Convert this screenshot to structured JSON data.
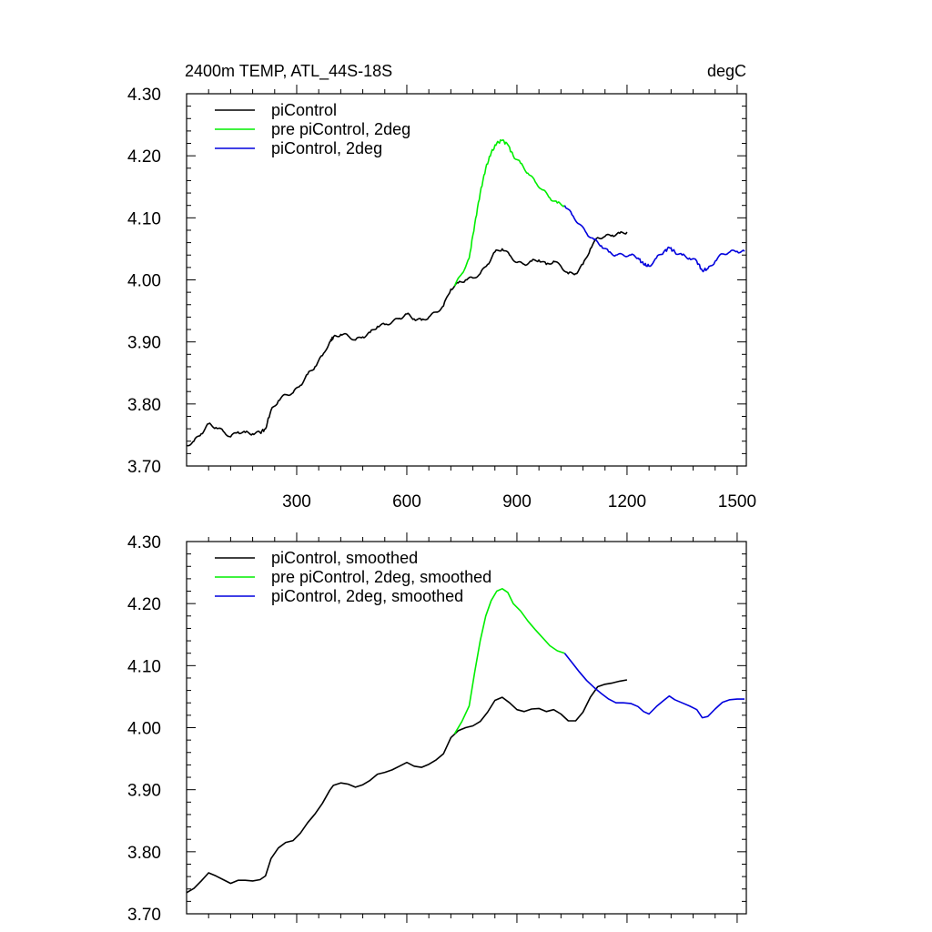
{
  "figure": {
    "title_left": "2400m TEMP, ATL_44S-18S",
    "title_right": "degC"
  },
  "chart_data": [
    {
      "type": "line",
      "title": "2400m TEMP, ATL_44S-18S",
      "units": "degC",
      "xlim": [
        0,
        1525
      ],
      "ylim": [
        3.7,
        4.3
      ],
      "x_ticks": [
        300,
        600,
        900,
        1200,
        1500
      ],
      "x_tick_labels": [
        "300",
        "600",
        "900",
        "1200",
        "1500"
      ],
      "y_ticks": [
        3.7,
        3.8,
        3.9,
        4.0,
        4.1,
        4.2,
        4.3
      ],
      "y_tick_labels": [
        "3.70",
        "3.80",
        "3.90",
        "4.00",
        "4.10",
        "4.20",
        "4.30"
      ],
      "legend_position": "top-left",
      "series": [
        {
          "name": "piControl",
          "color": "#000000",
          "x": [
            0,
            20,
            40,
            60,
            80,
            100,
            120,
            140,
            160,
            180,
            200,
            215,
            230,
            250,
            270,
            290,
            310,
            330,
            350,
            370,
            390,
            400,
            420,
            440,
            460,
            480,
            500,
            520,
            540,
            560,
            580,
            600,
            620,
            640,
            660,
            680,
            700,
            720,
            740,
            760,
            780,
            800,
            820,
            840,
            860,
            880,
            900,
            920,
            940,
            960,
            980,
            1000,
            1020,
            1040,
            1060,
            1080,
            1100,
            1120,
            1140,
            1160,
            1180,
            1200
          ],
          "y": [
            3.733,
            3.74,
            3.752,
            3.768,
            3.762,
            3.756,
            3.747,
            3.755,
            3.754,
            3.752,
            3.754,
            3.76,
            3.79,
            3.805,
            3.815,
            3.818,
            3.83,
            3.848,
            3.86,
            3.878,
            3.9,
            3.908,
            3.912,
            3.91,
            3.903,
            3.908,
            3.915,
            3.925,
            3.928,
            3.932,
            3.938,
            3.945,
            3.937,
            3.935,
            3.94,
            3.948,
            3.958,
            3.985,
            3.995,
            4.0,
            4.003,
            4.01,
            4.025,
            4.045,
            4.05,
            4.04,
            4.028,
            4.025,
            4.03,
            4.032,
            4.025,
            4.03,
            4.022,
            4.01,
            4.01,
            4.025,
            4.05,
            4.068,
            4.07,
            4.072,
            4.075,
            4.077
          ]
        },
        {
          "name": "pre piControl, 2deg",
          "color": "#00ee00",
          "x": [
            730,
            750,
            770,
            785,
            800,
            815,
            830,
            845,
            860,
            875,
            890,
            910,
            930,
            950,
            970,
            990,
            1010,
            1030
          ],
          "y": [
            3.99,
            4.01,
            4.035,
            4.09,
            4.14,
            4.18,
            4.205,
            4.22,
            4.225,
            4.218,
            4.2,
            4.188,
            4.172,
            4.158,
            4.145,
            4.132,
            4.124,
            4.12
          ]
        },
        {
          "name": "piControl, 2deg",
          "color": "#0000dd",
          "x": [
            1030,
            1050,
            1070,
            1090,
            1110,
            1130,
            1150,
            1170,
            1190,
            1210,
            1230,
            1245,
            1260,
            1280,
            1300,
            1315,
            1330,
            1350,
            1370,
            1390,
            1405,
            1420,
            1440,
            1460,
            1480,
            1500,
            1520
          ],
          "y": [
            4.12,
            4.105,
            4.09,
            4.075,
            4.065,
            4.055,
            4.045,
            4.04,
            4.04,
            4.04,
            4.035,
            4.025,
            4.022,
            4.035,
            4.045,
            4.052,
            4.045,
            4.04,
            4.035,
            4.03,
            4.015,
            4.018,
            4.03,
            4.042,
            4.045,
            4.046,
            4.046
          ]
        }
      ]
    },
    {
      "type": "line",
      "xlim": [
        0,
        1525
      ],
      "ylim": [
        3.7,
        4.3
      ],
      "x_ticks": [
        300,
        600,
        900,
        1200,
        1500
      ],
      "y_ticks": [
        3.7,
        3.8,
        3.9,
        4.0,
        4.1,
        4.2,
        4.3
      ],
      "y_tick_labels": [
        "3.70",
        "3.80",
        "3.90",
        "4.00",
        "4.10",
        "4.20",
        "4.30"
      ],
      "legend_position": "top-left",
      "series": [
        {
          "name": "piControl, smoothed",
          "color": "#000000",
          "x": [
            0,
            20,
            40,
            60,
            80,
            100,
            120,
            140,
            160,
            180,
            200,
            215,
            230,
            250,
            270,
            290,
            310,
            330,
            350,
            370,
            390,
            400,
            420,
            440,
            460,
            480,
            500,
            520,
            540,
            560,
            580,
            600,
            620,
            640,
            660,
            680,
            700,
            720,
            740,
            760,
            780,
            800,
            820,
            840,
            860,
            880,
            900,
            920,
            940,
            960,
            980,
            1000,
            1020,
            1040,
            1060,
            1080,
            1100,
            1120,
            1140,
            1160,
            1180,
            1200
          ],
          "y": [
            3.734,
            3.741,
            3.753,
            3.766,
            3.761,
            3.755,
            3.749,
            3.754,
            3.754,
            3.753,
            3.755,
            3.761,
            3.789,
            3.806,
            3.815,
            3.818,
            3.83,
            3.847,
            3.861,
            3.878,
            3.899,
            3.907,
            3.911,
            3.909,
            3.904,
            3.908,
            3.915,
            3.925,
            3.928,
            3.932,
            3.938,
            3.944,
            3.938,
            3.936,
            3.941,
            3.948,
            3.958,
            3.984,
            3.995,
            4.0,
            4.003,
            4.01,
            4.025,
            4.044,
            4.049,
            4.04,
            4.029,
            4.026,
            4.03,
            4.031,
            4.026,
            4.029,
            4.022,
            4.011,
            4.011,
            4.025,
            4.049,
            4.066,
            4.07,
            4.072,
            4.075,
            4.077
          ]
        },
        {
          "name": "pre piControl, 2deg, smoothed",
          "color": "#00ee00",
          "x": [
            730,
            750,
            770,
            785,
            800,
            815,
            830,
            845,
            860,
            875,
            890,
            910,
            930,
            950,
            970,
            990,
            1010,
            1030
          ],
          "y": [
            3.99,
            4.01,
            4.035,
            4.09,
            4.14,
            4.18,
            4.205,
            4.22,
            4.224,
            4.218,
            4.2,
            4.188,
            4.172,
            4.158,
            4.145,
            4.132,
            4.124,
            4.12
          ]
        },
        {
          "name": "piControl, 2deg, smoothed",
          "color": "#0000dd",
          "x": [
            1030,
            1050,
            1070,
            1090,
            1110,
            1130,
            1150,
            1170,
            1190,
            1210,
            1230,
            1245,
            1260,
            1280,
            1300,
            1315,
            1330,
            1350,
            1370,
            1390,
            1405,
            1420,
            1440,
            1460,
            1480,
            1500,
            1520
          ],
          "y": [
            4.12,
            4.105,
            4.09,
            4.076,
            4.065,
            4.055,
            4.046,
            4.04,
            4.04,
            4.039,
            4.034,
            4.026,
            4.022,
            4.034,
            4.044,
            4.051,
            4.045,
            4.04,
            4.035,
            4.029,
            4.016,
            4.018,
            4.03,
            4.041,
            4.045,
            4.046,
            4.046
          ]
        }
      ]
    }
  ]
}
